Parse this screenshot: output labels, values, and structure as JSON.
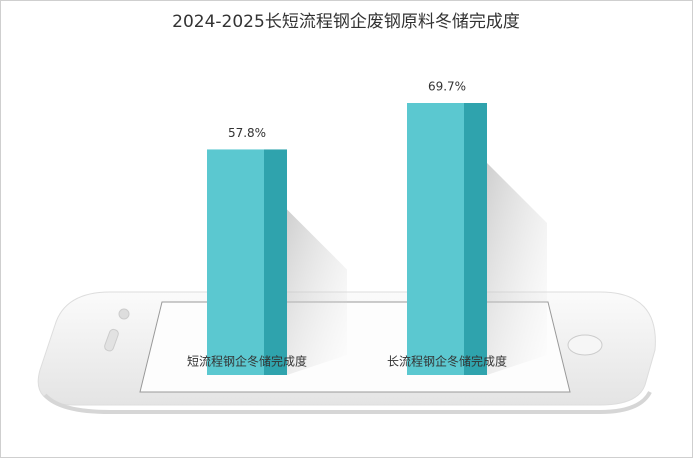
{
  "chart_data": {
    "type": "bar",
    "title": "2024-2025长短流程钢企废钢原料冬储完成度",
    "categories": [
      "短流程钢企冬储完成度",
      "长流程钢企冬储完成度"
    ],
    "values": [
      57.8,
      69.7
    ],
    "value_labels": [
      "57.8%",
      "69.7%"
    ],
    "color": "#5bc8d0",
    "side_color": "#2fa3ad"
  }
}
